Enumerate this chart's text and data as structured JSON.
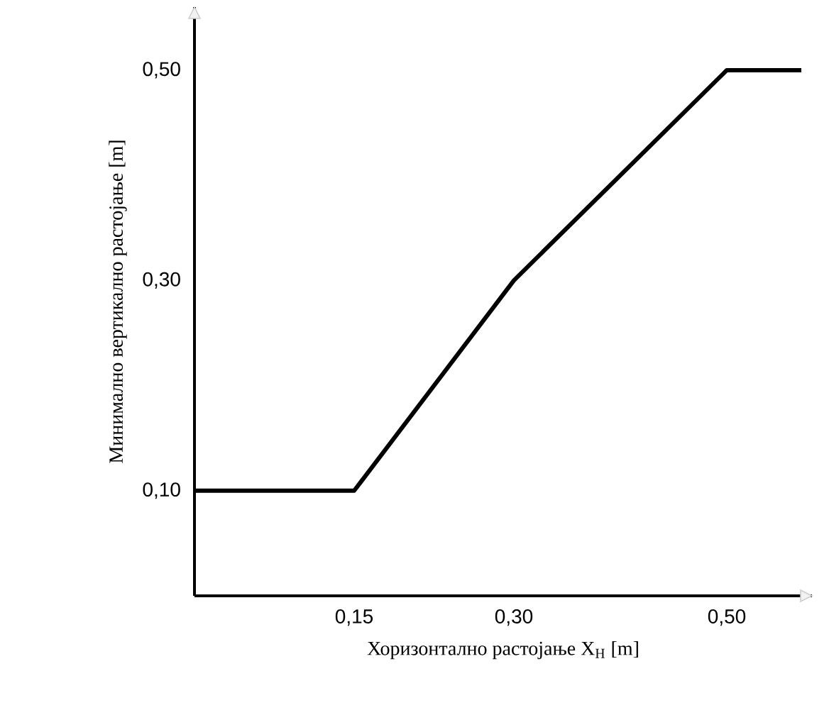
{
  "chart_data": {
    "type": "line",
    "xlabel": "Хоризонтално растојање X$_{H}$ [m]",
    "ylabel": "Минимално вертикално растојање [m]",
    "x": [
      0,
      0.15,
      0.3,
      0.5,
      0.57
    ],
    "series": [
      {
        "color": "#000000",
        "values": [
          0.1,
          0.1,
          0.3,
          0.5,
          0.5
        ]
      }
    ],
    "xlim": [
      0,
      0.58
    ],
    "ylim": [
      0,
      0.56
    ],
    "xticks": [
      {
        "value": 0.15,
        "label": "0,15"
      },
      {
        "value": 0.3,
        "label": "0,30"
      },
      {
        "value": 0.5,
        "label": "0,50"
      }
    ],
    "yticks": [
      {
        "value": 0.1,
        "label": "0,10"
      },
      {
        "value": 0.3,
        "label": "0,30"
      },
      {
        "value": 0.5,
        "label": "0,50"
      }
    ],
    "marker": "none",
    "line_style": "solid",
    "grid": false
  }
}
